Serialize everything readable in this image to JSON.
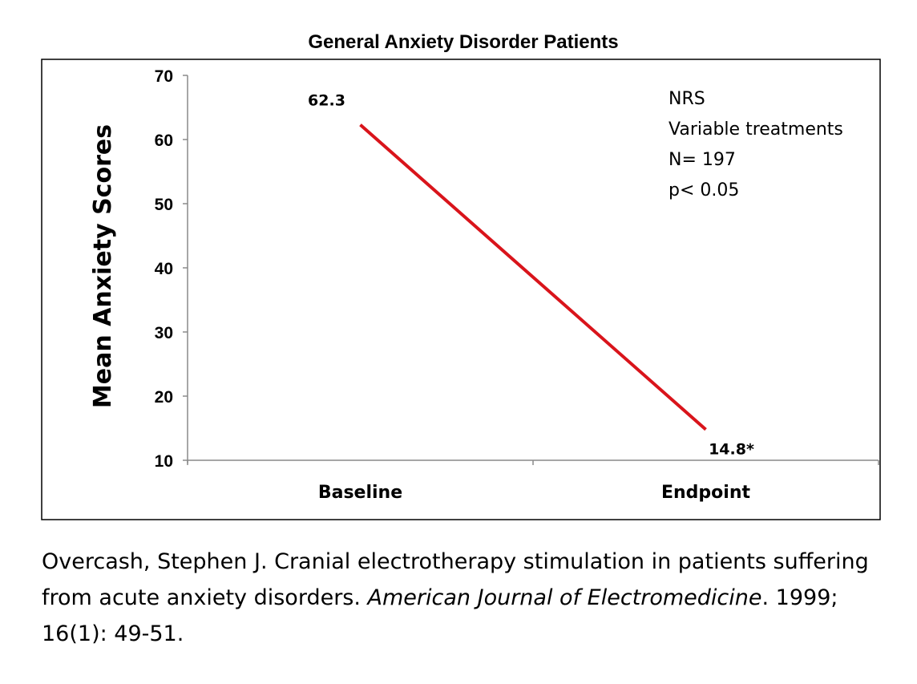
{
  "chart_data": {
    "type": "line",
    "title": "General Anxiety Disorder Patients",
    "ylabel": "Mean Anxiety Scores",
    "xlabel": "",
    "categories": [
      "Baseline",
      "Endpoint"
    ],
    "series": [
      {
        "values": [
          62.3,
          14.8
        ],
        "data_labels": [
          "62.3",
          "14.8*"
        ],
        "color": "#d9141b"
      }
    ],
    "ylim": [
      10,
      70
    ],
    "yticks": [
      10,
      20,
      30,
      40,
      50,
      60,
      70
    ],
    "grid": false,
    "annotations": [
      "NRS",
      "Variable treatments",
      "N= 197",
      "p< 0.05"
    ],
    "annotation_placement": "top-right"
  },
  "citation": {
    "text_plain_1": "Overcash, Stephen J. Cranial electrotherapy stimulation in patients suffering from acute anxiety disorders. ",
    "journal": "American Journal of Electromedicine",
    "text_plain_2": ". 1999; 16(1): 49-51."
  }
}
